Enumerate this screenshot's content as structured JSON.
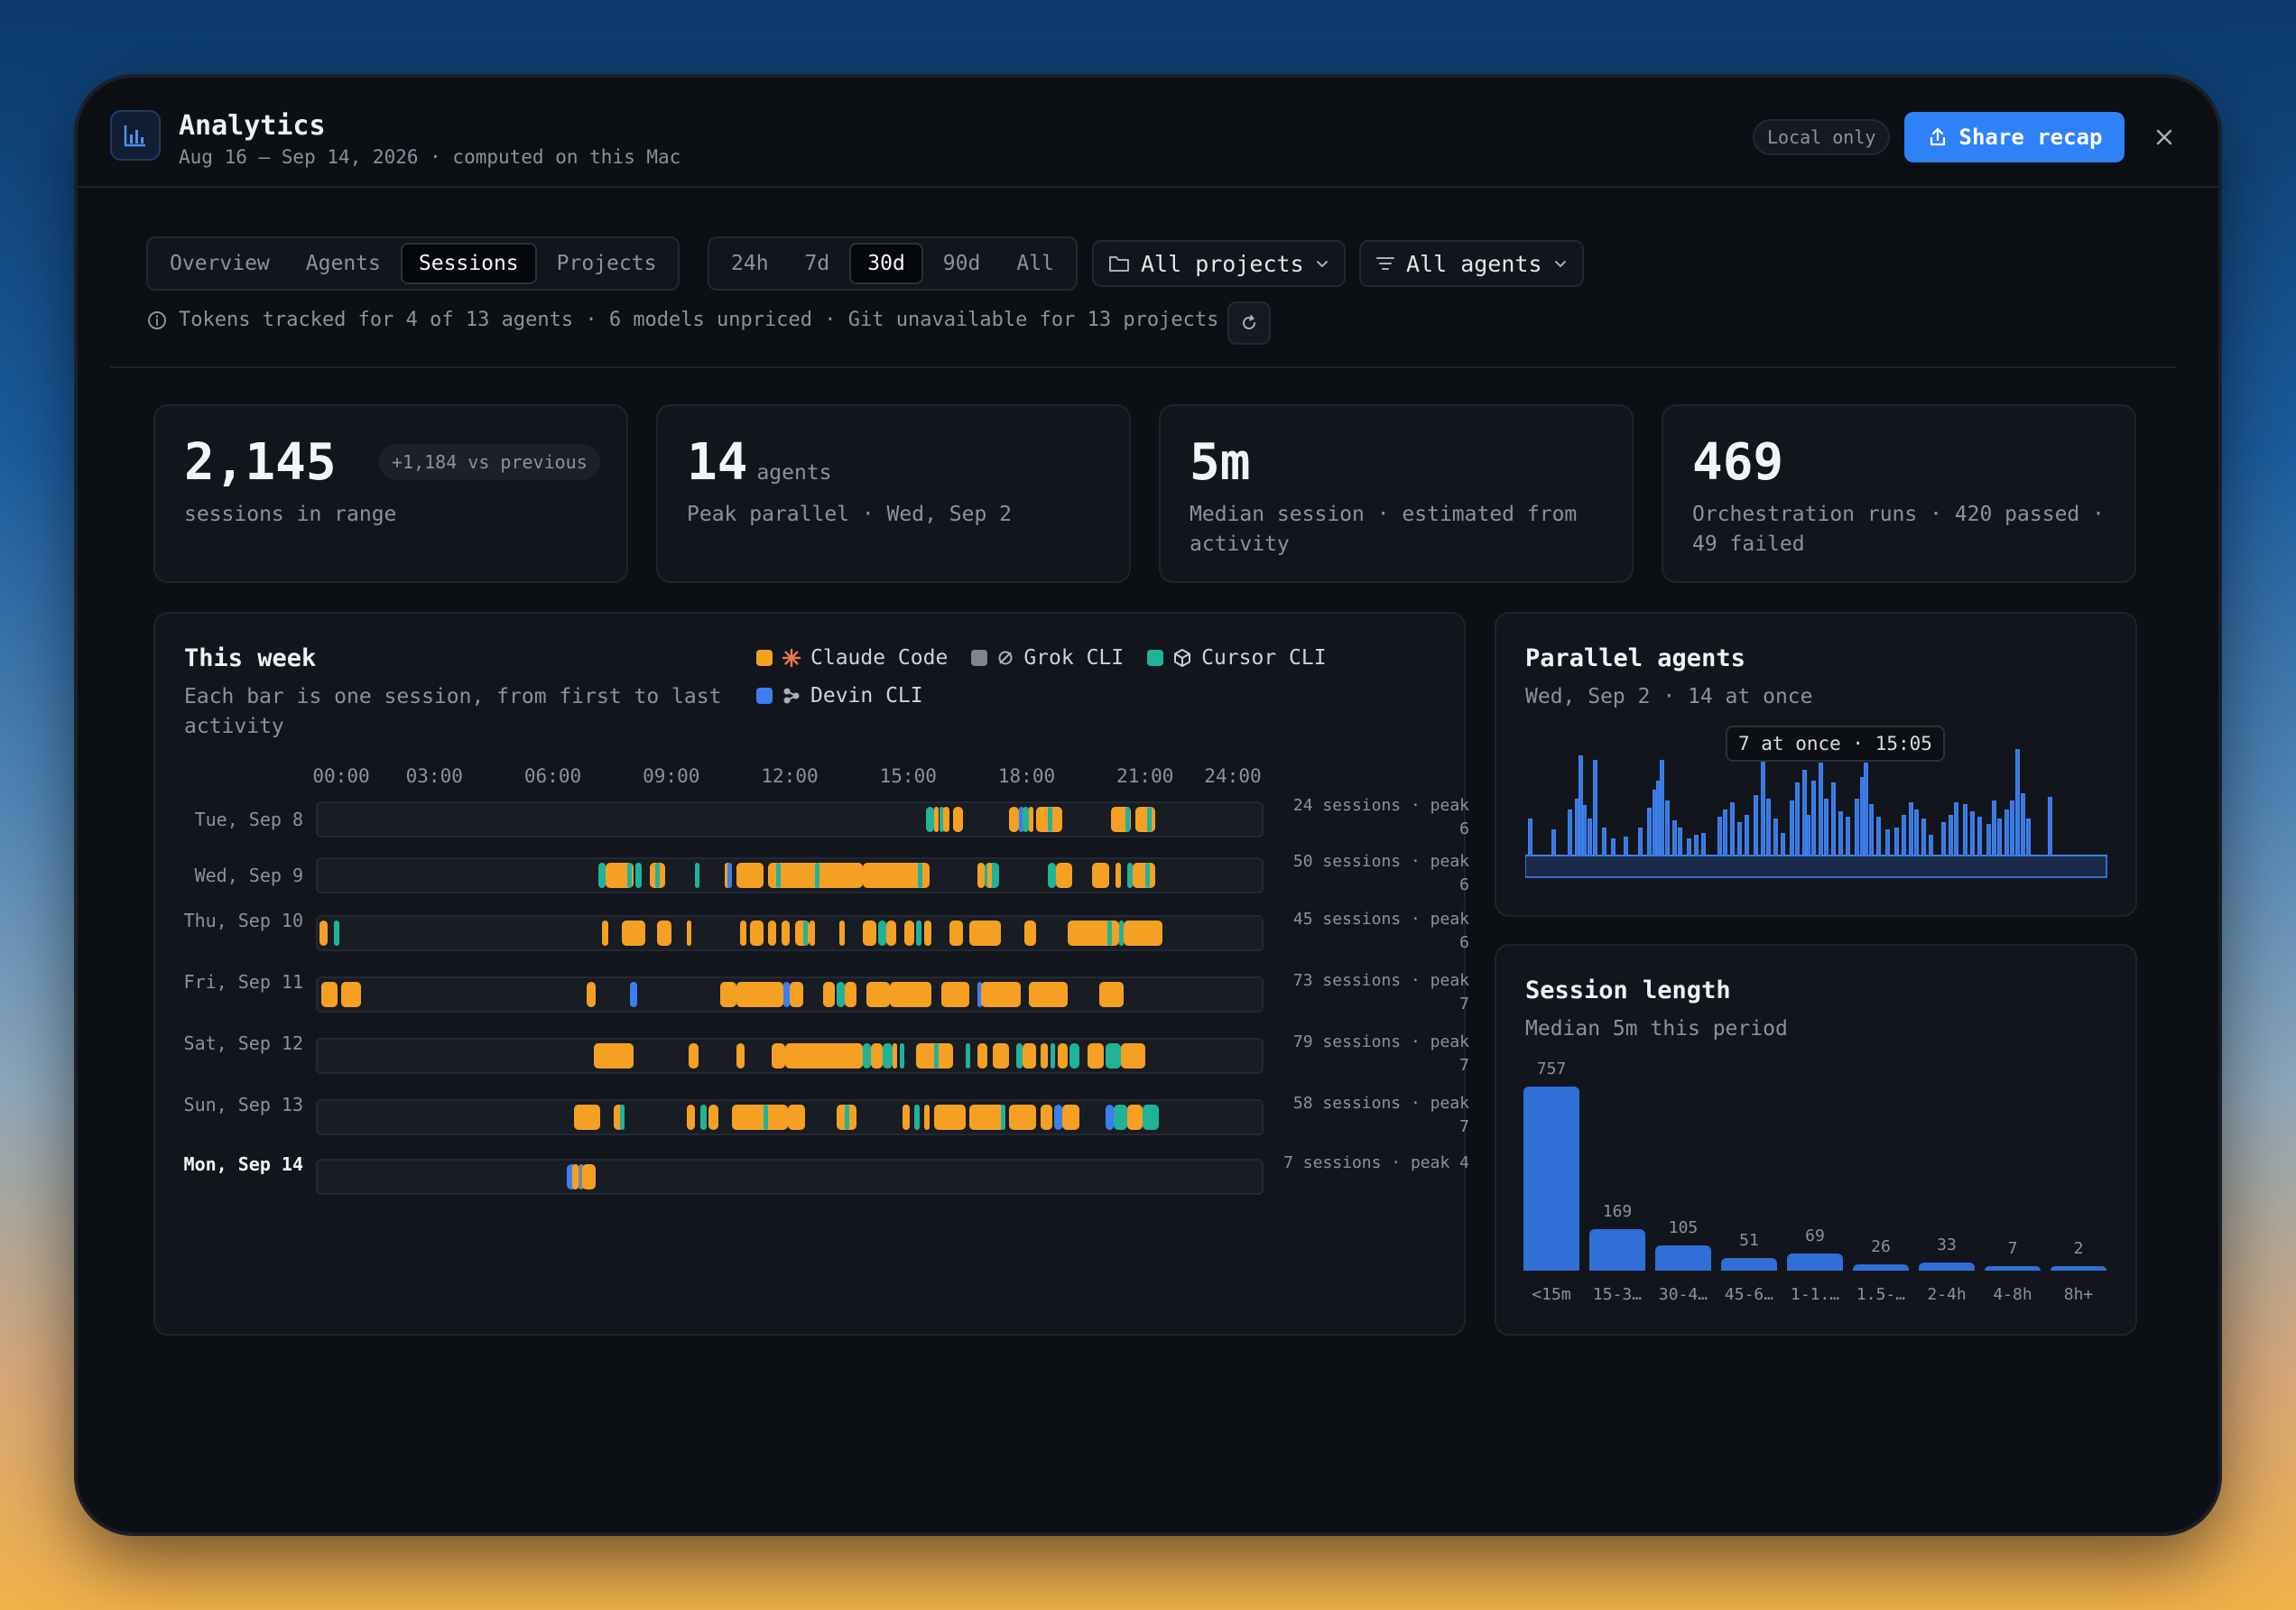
{
  "window": {
    "title": "Analytics",
    "subtitle": "Aug 16 – Sep 14, 2026 · computed on this Mac",
    "local_badge": "Local only",
    "share_label": "Share recap"
  },
  "tabs": [
    {
      "label": "Overview",
      "active": false
    },
    {
      "label": "Agents",
      "active": false
    },
    {
      "label": "Sessions",
      "active": true
    },
    {
      "label": "Projects",
      "active": false
    }
  ],
  "ranges": [
    {
      "label": "24h",
      "active": false
    },
    {
      "label": "7d",
      "active": false
    },
    {
      "label": "30d",
      "active": true
    },
    {
      "label": "90d",
      "active": false
    },
    {
      "label": "All",
      "active": false
    }
  ],
  "filters": {
    "projects": "All projects",
    "agents": "All agents"
  },
  "info_text": "Tokens tracked for 4 of 13 agents · 6 models unpriced · Git unavailable for 13 projects",
  "stats": [
    {
      "value": "2,145",
      "unit": "",
      "desc": "sessions in range",
      "badge": "+1,184 vs previous"
    },
    {
      "value": "14",
      "unit": "agents",
      "desc": "Peak parallel · Wed, Sep 2",
      "badge": ""
    },
    {
      "value": "5m",
      "unit": "",
      "desc": "Median session · estimated from activity",
      "badge": ""
    },
    {
      "value": "469",
      "unit": "",
      "desc": "Orchestration runs · 420 passed · 49 failed",
      "badge": ""
    }
  ],
  "colors": {
    "claude": "#f5a023",
    "grok": "#7d8590",
    "cursor": "#1fb39a",
    "devin": "#3b7ef0",
    "accent": "#2f81f7",
    "bar": "#2f6fd6"
  },
  "week": {
    "title": "This week",
    "subtitle": "Each bar is one session, from first to last activity",
    "legend": [
      {
        "label": "Claude Code",
        "color": "#f5a023",
        "icon": "claude-asterisk-icon"
      },
      {
        "label": "Grok CLI",
        "color": "#7d8590",
        "icon": "grok-swirl-icon"
      },
      {
        "label": "Cursor CLI",
        "color": "#1fb39a",
        "icon": "cursor-cube-icon"
      },
      {
        "label": "Devin CLI",
        "color": "#3b7ef0",
        "icon": "devin-nodes-icon"
      }
    ],
    "hours": [
      "00:00",
      "03:00",
      "06:00",
      "09:00",
      "12:00",
      "15:00",
      "18:00",
      "21:00",
      "24:00"
    ],
    "days": [
      {
        "label": "Tue, Sep 8",
        "stat": "24 sessions · peak 6",
        "today": false,
        "sessions": [
          [
            15.4,
            15.6,
            "c"
          ],
          [
            15.6,
            15.7,
            "a"
          ],
          [
            15.75,
            15.85,
            "c"
          ],
          [
            15.85,
            16.0,
            "a"
          ],
          [
            16.1,
            16.35,
            "a"
          ],
          [
            17.5,
            17.75,
            "a"
          ],
          [
            17.75,
            17.85,
            "d"
          ],
          [
            17.85,
            18.0,
            "c"
          ],
          [
            18.0,
            18.1,
            "a"
          ],
          [
            18.2,
            18.85,
            "a"
          ],
          [
            18.5,
            18.56,
            "c"
          ],
          [
            20.1,
            20.6,
            "a"
          ],
          [
            20.45,
            20.52,
            "c"
          ],
          [
            20.7,
            21.2,
            "a"
          ],
          [
            21.0,
            21.06,
            "c"
          ]
        ]
      },
      {
        "label": "Wed, Sep 9",
        "stat": "50 sessions · peak 6",
        "today": false,
        "sessions": [
          [
            7.1,
            7.3,
            "c"
          ],
          [
            7.3,
            8.0,
            "a"
          ],
          [
            7.85,
            7.9,
            "c"
          ],
          [
            8.05,
            8.2,
            "c"
          ],
          [
            8.4,
            8.8,
            "a"
          ],
          [
            8.55,
            8.6,
            "c"
          ],
          [
            9.55,
            9.65,
            "c"
          ],
          [
            10.3,
            10.45,
            "a"
          ],
          [
            10.38,
            10.42,
            "d"
          ],
          [
            10.6,
            11.3,
            "a"
          ],
          [
            11.4,
            13.8,
            "a"
          ],
          [
            11.6,
            11.66,
            "c"
          ],
          [
            12.6,
            12.66,
            "c"
          ],
          [
            14.0,
            14.1,
            "d"
          ],
          [
            13.8,
            15.5,
            "a"
          ],
          [
            15.2,
            15.26,
            "c"
          ],
          [
            16.7,
            16.9,
            "a"
          ],
          [
            16.9,
            17.25,
            "c"
          ],
          [
            16.95,
            17.05,
            "a"
          ],
          [
            18.5,
            18.7,
            "c"
          ],
          [
            18.7,
            19.1,
            "a"
          ],
          [
            19.6,
            20.05,
            "a"
          ],
          [
            20.2,
            20.35,
            "a"
          ],
          [
            20.5,
            20.65,
            "c"
          ],
          [
            20.65,
            21.2,
            "a"
          ],
          [
            20.95,
            21.0,
            "c"
          ]
        ]
      },
      {
        "label": "Thu, Sep 10",
        "stat": "45 sessions · peak 6",
        "today": false,
        "sessions": [
          [
            0.05,
            0.25,
            "a"
          ],
          [
            0.4,
            0.55,
            "c"
          ],
          [
            7.2,
            7.35,
            "a"
          ],
          [
            7.7,
            8.3,
            "a"
          ],
          [
            8.6,
            8.95,
            "a"
          ],
          [
            9.35,
            9.45,
            "a"
          ],
          [
            10.7,
            10.85,
            "a"
          ],
          [
            10.95,
            11.3,
            "a"
          ],
          [
            11.4,
            11.6,
            "a"
          ],
          [
            11.75,
            11.95,
            "a"
          ],
          [
            12.1,
            12.45,
            "a"
          ],
          [
            12.3,
            12.38,
            "c"
          ],
          [
            12.45,
            12.6,
            "a"
          ],
          [
            13.2,
            13.35,
            "a"
          ],
          [
            13.8,
            14.15,
            "a"
          ],
          [
            14.2,
            14.4,
            "c"
          ],
          [
            14.4,
            14.65,
            "a"
          ],
          [
            14.85,
            15.1,
            "a"
          ],
          [
            15.15,
            15.3,
            "c"
          ],
          [
            15.35,
            15.55,
            "a"
          ],
          [
            16.0,
            16.35,
            "a"
          ],
          [
            16.5,
            17.3,
            "a"
          ],
          [
            17.9,
            18.2,
            "a"
          ],
          [
            19.0,
            20.3,
            "a"
          ],
          [
            20.0,
            20.08,
            "c"
          ],
          [
            20.3,
            20.36,
            "c"
          ],
          [
            20.4,
            21.4,
            "a"
          ]
        ]
      },
      {
        "label": "Fri, Sep 11",
        "stat": "73 sessions · peak 7",
        "today": false,
        "sessions": [
          [
            0.1,
            0.5,
            "a"
          ],
          [
            0.6,
            1.1,
            "a"
          ],
          [
            6.8,
            7.05,
            "a"
          ],
          [
            7.9,
            8.1,
            "d"
          ],
          [
            10.2,
            10.6,
            "a"
          ],
          [
            10.6,
            11.8,
            "a"
          ],
          [
            11.8,
            11.95,
            "d"
          ],
          [
            11.95,
            12.3,
            "a"
          ],
          [
            12.8,
            13.1,
            "a"
          ],
          [
            13.15,
            13.35,
            "c"
          ],
          [
            13.35,
            13.65,
            "a"
          ],
          [
            13.9,
            14.5,
            "a"
          ],
          [
            14.5,
            15.55,
            "a"
          ],
          [
            15.8,
            16.5,
            "a"
          ],
          [
            16.7,
            16.8,
            "d"
          ],
          [
            16.8,
            17.8,
            "a"
          ],
          [
            18.0,
            19.0,
            "a"
          ],
          [
            19.8,
            20.4,
            "a"
          ]
        ]
      },
      {
        "label": "Sat, Sep 12",
        "stat": "79 sessions · peak 7",
        "today": false,
        "sessions": [
          [
            7.0,
            8.0,
            "a"
          ],
          [
            9.4,
            9.65,
            "a"
          ],
          [
            10.6,
            10.8,
            "a"
          ],
          [
            11.5,
            11.85,
            "a"
          ],
          [
            11.85,
            13.8,
            "a"
          ],
          [
            13.8,
            14.0,
            "c"
          ],
          [
            14.0,
            14.3,
            "a"
          ],
          [
            14.3,
            14.55,
            "c"
          ],
          [
            14.55,
            14.62,
            "a"
          ],
          [
            14.75,
            14.85,
            "c"
          ],
          [
            15.15,
            16.1,
            "a"
          ],
          [
            15.6,
            15.66,
            "c"
          ],
          [
            16.4,
            16.5,
            "c"
          ],
          [
            16.7,
            16.95,
            "a"
          ],
          [
            17.1,
            17.5,
            "a"
          ],
          [
            17.7,
            17.85,
            "c"
          ],
          [
            17.85,
            18.2,
            "a"
          ],
          [
            18.3,
            18.5,
            "a"
          ],
          [
            18.55,
            18.65,
            "c"
          ],
          [
            18.75,
            19.0,
            "a"
          ],
          [
            19.05,
            19.3,
            "c"
          ],
          [
            19.5,
            19.9,
            "a"
          ],
          [
            19.95,
            20.35,
            "c"
          ],
          [
            20.35,
            20.95,
            "a"
          ]
        ]
      },
      {
        "label": "Sun, Sep 13",
        "stat": "58 sessions · peak 7",
        "today": false,
        "sessions": [
          [
            6.5,
            7.15,
            "a"
          ],
          [
            7.5,
            7.75,
            "a"
          ],
          [
            7.65,
            7.72,
            "c"
          ],
          [
            9.35,
            9.55,
            "a"
          ],
          [
            9.7,
            9.85,
            "c"
          ],
          [
            9.9,
            10.15,
            "a"
          ],
          [
            10.5,
            11.9,
            "a"
          ],
          [
            11.3,
            11.36,
            "c"
          ],
          [
            11.9,
            12.35,
            "a"
          ],
          [
            13.15,
            13.65,
            "a"
          ],
          [
            13.35,
            13.42,
            "c"
          ],
          [
            14.8,
            15.0,
            "a"
          ],
          [
            15.1,
            15.25,
            "c"
          ],
          [
            15.35,
            15.5,
            "a"
          ],
          [
            15.6,
            16.4,
            "a"
          ],
          [
            16.5,
            17.4,
            "a"
          ],
          [
            17.3,
            17.36,
            "c"
          ],
          [
            17.5,
            18.2,
            "a"
          ],
          [
            18.3,
            18.6,
            "a"
          ],
          [
            18.65,
            18.85,
            "d"
          ],
          [
            18.85,
            19.3,
            "a"
          ],
          [
            19.95,
            20.15,
            "d"
          ],
          [
            20.15,
            20.5,
            "c"
          ],
          [
            20.5,
            20.9,
            "a"
          ],
          [
            20.9,
            21.3,
            "c"
          ]
        ]
      },
      {
        "label": "Mon, Sep 14",
        "stat": "7 sessions · peak 4",
        "today": true,
        "sessions": [
          [
            6.3,
            6.55,
            "d"
          ],
          [
            6.45,
            6.6,
            "a"
          ],
          [
            6.6,
            6.75,
            "g"
          ],
          [
            6.7,
            7.05,
            "a"
          ]
        ]
      }
    ]
  },
  "parallel": {
    "title": "Parallel agents",
    "subtitle": "Wed, Sep 2 · 14 at once",
    "tooltip": "7 at once · 15:05"
  },
  "session_length": {
    "title": "Session length",
    "subtitle": "Median 5m this period"
  },
  "chart_data": [
    {
      "type": "bar",
      "title": "Session length",
      "subtitle": "Median 5m this period",
      "categories": [
        "<15m",
        "15-3…",
        "30-4…",
        "45-6…",
        "1-1.…",
        "1.5-…",
        "2-4h",
        "4-8h",
        "8h+"
      ],
      "values": [
        757,
        169,
        105,
        51,
        69,
        26,
        33,
        7,
        2
      ],
      "xlabel": "",
      "ylabel": ""
    }
  ]
}
